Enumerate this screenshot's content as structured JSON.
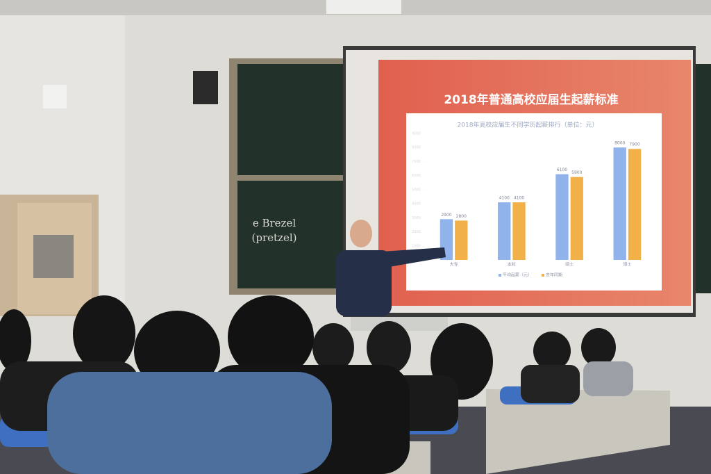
{
  "slide": {
    "title": "2018年普通高校应届生起薪标准"
  },
  "chalkboard": {
    "lines": [
      "e Brezel",
      "(pretzel)"
    ]
  },
  "chart_data": {
    "type": "bar",
    "title": "2018年高校应届生不同学历起薪排行（单位：元）",
    "categories": [
      "大专",
      "本科",
      "硕士",
      "博士"
    ],
    "series": [
      {
        "name": "平均起薪（元）",
        "color": "#8fb3ea",
        "values": [
          2900,
          4100,
          6100,
          8000
        ]
      },
      {
        "name": "去年同期",
        "color": "#f2b148",
        "values": [
          2800,
          4100,
          5900,
          7900
        ]
      }
    ],
    "ylim": [
      0,
      9000
    ],
    "yticks": [
      0,
      1000,
      2000,
      3000,
      4000,
      5000,
      6000,
      7000,
      8000,
      9000
    ],
    "grid": false
  }
}
